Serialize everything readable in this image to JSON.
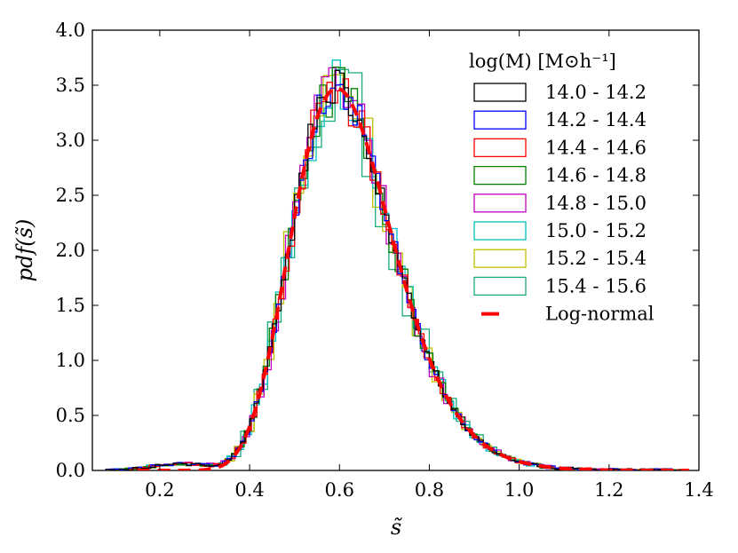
{
  "chart_data": {
    "type": "histogram",
    "title": "",
    "xlabel": "s̃",
    "ylabel": "pdf(s̃)",
    "xlim": [
      0.05,
      1.4
    ],
    "ylim": [
      0.0,
      4.0
    ],
    "x_ticks": [
      0.2,
      0.4,
      0.6,
      0.8,
      1.0,
      1.2,
      1.4
    ],
    "x_tick_labels": [
      "0.2",
      "0.4",
      "0.6",
      "0.8",
      "1.0",
      "1.2",
      "1.4"
    ],
    "y_ticks": [
      0.0,
      0.5,
      1.0,
      1.5,
      2.0,
      2.5,
      3.0,
      3.5,
      4.0
    ],
    "y_tick_labels": [
      "0.0",
      "0.5",
      "1.0",
      "1.5",
      "2.0",
      "2.5",
      "3.0",
      "3.5",
      "4.0"
    ],
    "grid": false,
    "legend": {
      "title": "log(M) [M⊙h⁻¹]",
      "placement": "top-right",
      "entries": [
        {
          "label": "14.0 - 14.2",
          "color": "#000000",
          "style": "step"
        },
        {
          "label": "14.2 - 14.4",
          "color": "#0000ff",
          "style": "step"
        },
        {
          "label": "14.4 - 14.6",
          "color": "#ff0000",
          "style": "step"
        },
        {
          "label": "14.6 - 14.8",
          "color": "#008000",
          "style": "step"
        },
        {
          "label": "14.8 - 15.0",
          "color": "#bf00bf",
          "style": "step"
        },
        {
          "label": "15.0 - 15.2",
          "color": "#00bfbf",
          "style": "step"
        },
        {
          "label": "15.2 - 15.4",
          "color": "#bfbf00",
          "style": "step"
        },
        {
          "label": "15.4 - 15.6",
          "color": "#1aaa80",
          "style": "step"
        },
        {
          "label": "Log-normal",
          "color": "#ff0000",
          "style": "dashed"
        }
      ]
    },
    "histogram_model": {
      "type": "lognormal",
      "mu": -0.485,
      "sigma": 0.19,
      "x_range": [
        0.08,
        1.36
      ]
    },
    "series": [
      {
        "name": "14.0 - 14.2",
        "color": "#000000",
        "bin_width": 0.01,
        "noise": 0.05,
        "seed": 1
      },
      {
        "name": "14.2 - 14.4",
        "color": "#0000ff",
        "bin_width": 0.01,
        "noise": 0.05,
        "seed": 2
      },
      {
        "name": "14.4 - 14.6",
        "color": "#ff0000",
        "bin_width": 0.012,
        "noise": 0.06,
        "seed": 3
      },
      {
        "name": "14.6 - 14.8",
        "color": "#008000",
        "bin_width": 0.014,
        "noise": 0.07,
        "seed": 4
      },
      {
        "name": "14.8 - 15.0",
        "color": "#bf00bf",
        "bin_width": 0.016,
        "noise": 0.08,
        "seed": 5
      },
      {
        "name": "15.0 - 15.2",
        "color": "#00bfbf",
        "bin_width": 0.018,
        "noise": 0.09,
        "seed": 6
      },
      {
        "name": "15.2 - 15.4",
        "color": "#bfbf00",
        "bin_width": 0.022,
        "noise": 0.1,
        "seed": 7
      },
      {
        "name": "15.4 - 15.6",
        "color": "#1aaa80",
        "bin_width": 0.03,
        "noise": 0.12,
        "seed": 8
      }
    ],
    "fit_curve": {
      "name": "Log-normal",
      "color": "#ff0000",
      "mu": -0.485,
      "sigma": 0.19
    }
  }
}
